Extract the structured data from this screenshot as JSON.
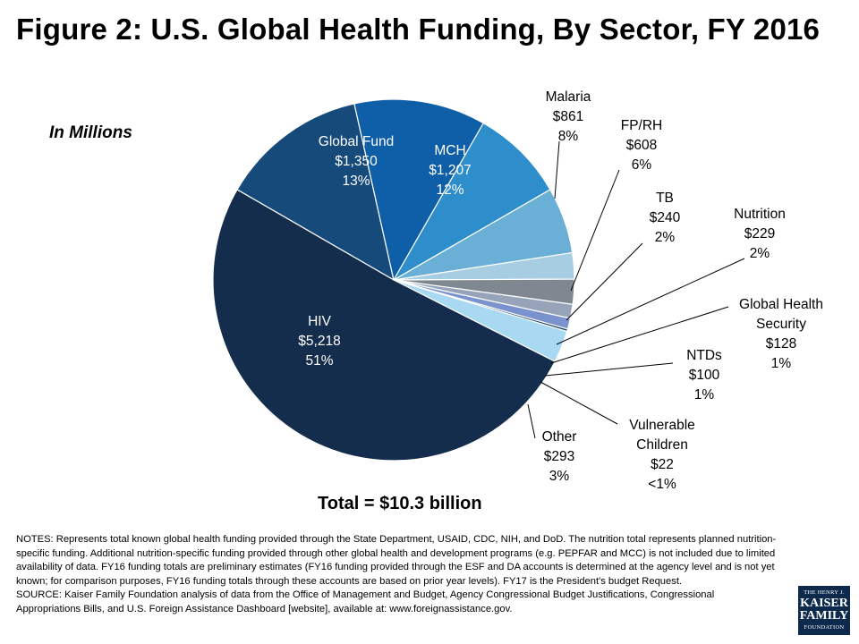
{
  "title": "Figure 2: U.S. Global Health Funding, By Sector, FY 2016",
  "units_label": "In Millions",
  "total_label": "Total = $10.3 billion",
  "notes": "NOTES: Represents total known global health funding provided through the State Department, USAID, CDC, NIH, and DoD. The nutrition total represents planned nutrition-specific funding. Additional nutrition-specific funding provided through other global health and development programs (e.g. PEPFAR and MCC) is not included due to limited availability of data. FY16 funding totals are preliminary estimates (FY16 funding provided through the ESF and DA accounts is determined at the agency level and is not yet known; for comparison purposes, FY16 funding totals through these accounts are based on prior year levels). FY17 is the President's budget Request.",
  "source": "SOURCE: Kaiser Family Foundation analysis of data from the Office of Management and Budget, Agency Congressional Budget Justifications, Congressional Appropriations Bills, and U.S. Foreign Assistance Dashboard [website], available at: www.foreignassistance.gov.",
  "logo": {
    "line1": "THE HENRY J.",
    "line2": "KAISER",
    "line3": "FAMILY",
    "line4": "FOUNDATION"
  },
  "chart_data": {
    "type": "pie",
    "title": "Figure 2: U.S. Global Health Funding, By Sector, FY 2016",
    "unit": "In Millions",
    "total": "Total = $10.3 billion",
    "slices": [
      {
        "name": "Global Fund",
        "value": 1350,
        "amount": "$1,350",
        "percent": "13%",
        "color": "#164a7a"
      },
      {
        "name": "MCH",
        "value": 1207,
        "amount": "$1,207",
        "percent": "12%",
        "color": "#0f5fa8"
      },
      {
        "name": "Malaria",
        "value": 861,
        "amount": "$861",
        "percent": "8%",
        "color": "#2e8dcb"
      },
      {
        "name": "FP/RH",
        "value": 608,
        "amount": "$608",
        "percent": "6%",
        "color": "#6aafd5"
      },
      {
        "name": "TB",
        "value": 240,
        "amount": "$240",
        "percent": "2%",
        "color": "#a6cde2"
      },
      {
        "name": "Nutrition",
        "value": 229,
        "amount": "$229",
        "percent": "2%",
        "color": "#7f8890"
      },
      {
        "name": "Global Health Security",
        "value": 128,
        "amount": "$128",
        "percent": "1%",
        "color": "#97a3b8"
      },
      {
        "name": "NTDs",
        "value": 100,
        "amount": "$100",
        "percent": "1%",
        "color": "#7a93cf"
      },
      {
        "name": "Vulnerable Children",
        "value": 22,
        "amount": "$22",
        "percent": "<1%",
        "color": "#1e3f66"
      },
      {
        "name": "Other",
        "value": 293,
        "amount": "$293",
        "percent": "3%",
        "color": "#a8d8f2"
      },
      {
        "name": "HIV",
        "value": 5218,
        "amount": "$5,218",
        "percent": "51%",
        "color": "#152d4d"
      }
    ]
  }
}
